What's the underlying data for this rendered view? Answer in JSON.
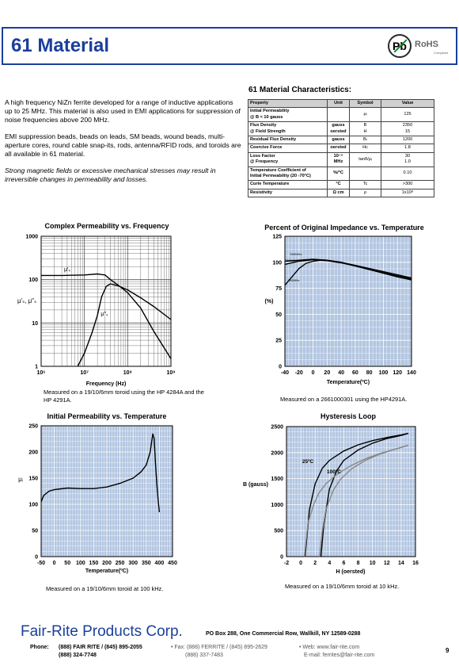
{
  "header": {
    "title": "61 Material",
    "pb": "Pb",
    "rohs": "RoHS",
    "rohs_sub": "Compliant"
  },
  "intro": {
    "p1": "A high frequency NiZn ferrite developed for a range of inductive applications up to 25 MHz. This material is also used in EMI applications for suppression of noise frequencies above 200 MHz.",
    "p2": "EMI suppression beads, beads on leads, SM beads, wound beads, multi-aperture cores, round cable snap-its, rods, antenna/RFID rods, and toroids are all available in 61 material.",
    "p3": "Strong magnetic fields or excessive mechanical stresses may result in irreversible changes in permeability and losses."
  },
  "characteristics": {
    "title": "61 Material Characteristics:",
    "headers": [
      "Property",
      "Unit",
      "Symbol",
      "Value"
    ],
    "rows": [
      {
        "property": [
          "Initial Permeability",
          "@ B < 10 gauss"
        ],
        "unit": [
          ""
        ],
        "symbol": [
          "μᵢ"
        ],
        "value": [
          "125"
        ]
      },
      {
        "property": [
          "Flux Density",
          "@ Field Strength"
        ],
        "unit": [
          "gauss",
          "oersted"
        ],
        "symbol": [
          "B",
          "H"
        ],
        "value": [
          "2350",
          "15"
        ]
      },
      {
        "property": [
          "Residual Flux Density"
        ],
        "unit": [
          "gauss"
        ],
        "symbol": [
          "Bᵣ"
        ],
        "value": [
          "1200"
        ]
      },
      {
        "property": [
          "Coercive Force"
        ],
        "unit": [
          "oersted"
        ],
        "symbol": [
          "Hc"
        ],
        "value": [
          "1.8"
        ]
      },
      {
        "property": [
          "Loss Factor",
          "@ Frequency"
        ],
        "unit": [
          "10⁻⁶",
          "MHz"
        ],
        "symbol": [
          "tanδ/μᵢ"
        ],
        "value": [
          "30",
          "1.0"
        ]
      },
      {
        "property": [
          "Temperature Coefficient of",
          "Initial Permeability (20 -70°C)"
        ],
        "unit": [
          "%/°C"
        ],
        "symbol": [
          ""
        ],
        "value": [
          "0.10"
        ]
      },
      {
        "property": [
          "Curie Temperature"
        ],
        "unit": [
          "°C"
        ],
        "symbol": [
          "Tc"
        ],
        "value": [
          ">300"
        ]
      },
      {
        "property": [
          "Resistivity"
        ],
        "unit": [
          "Ω cm"
        ],
        "symbol": [
          "ρ"
        ],
        "value": [
          "1x10⁸"
        ]
      }
    ]
  },
  "chart_data": [
    {
      "type": "line",
      "title": "Complex Permeability vs. Frequency",
      "xlabel": "Frequency (Hz)",
      "ylabel": "μ'ₛ, μ\"ₛ",
      "xscale": "log",
      "yscale": "log",
      "xlim": [
        1000000,
        1000000000
      ],
      "ylim": [
        1,
        1000
      ],
      "xticks": [
        "10⁶",
        "10⁷",
        "10⁸",
        "10⁹"
      ],
      "yticks": [
        "1",
        "10",
        "100",
        "1000"
      ],
      "series": [
        {
          "name": "μ'ₛ",
          "x": [
            1000000,
            3000000,
            10000000,
            20000000,
            30000000,
            40000000,
            60000000,
            100000000,
            200000000,
            400000000,
            1000000000
          ],
          "values": [
            125,
            125,
            128,
            135,
            128,
            100,
            75,
            50,
            22,
            6.5,
            1.5
          ]
        },
        {
          "name": "μ\"ₛ",
          "x": [
            7000000,
            10000000,
            15000000,
            20000000,
            25000000,
            32000000,
            40000000,
            60000000,
            100000000,
            200000000,
            400000000,
            1000000000
          ],
          "values": [
            1,
            2,
            6,
            15,
            40,
            70,
            80,
            72,
            58,
            38,
            24,
            12
          ]
        }
      ],
      "caption": "Measured on a 19/10/6mm toroid using the HP 4284A and the HP 4291A."
    },
    {
      "type": "line",
      "title": "Percent of Original Impedance vs. Temperature",
      "xlabel": "Temperature(ºC)",
      "ylabel": "(%)",
      "xlim": [
        -40,
        140
      ],
      "ylim": [
        0,
        125
      ],
      "xticks": [
        "-40",
        "-20",
        "0",
        "20",
        "40",
        "60",
        "80",
        "100",
        "120",
        "140"
      ],
      "yticks": [
        "0",
        "25",
        "50",
        "75",
        "100",
        "125"
      ],
      "series": [
        {
          "name": "500MHz",
          "x": [
            -40,
            -20,
            0,
            20,
            40,
            60,
            80,
            100,
            120,
            140
          ],
          "values": [
            101,
            102,
            103,
            102,
            100,
            97,
            94,
            91,
            88,
            85
          ]
        },
        {
          "name": "300MHz",
          "x": [
            -40,
            -20,
            0,
            20,
            40,
            60,
            80,
            100,
            120,
            140
          ],
          "values": [
            98,
            101,
            102.5,
            102,
            100,
            96.5,
            93,
            90,
            87,
            84
          ]
        },
        {
          "name": "100MHz",
          "x": [
            -40,
            -30,
            -20,
            -10,
            0,
            10,
            20,
            40,
            60,
            80,
            100,
            120,
            140
          ],
          "values": [
            78,
            86,
            94,
            99,
            101,
            102,
            101.5,
            99.5,
            96.5,
            93,
            89.5,
            86,
            83
          ]
        }
      ],
      "caption": "Measured on a 2661000301 using the HP4291A."
    },
    {
      "type": "line",
      "title": "Initial Permeability vs. Temperature",
      "xlabel": "Temperature(ºC)",
      "ylabel": "μᵢ",
      "xlim": [
        -50,
        450
      ],
      "ylim": [
        0,
        250
      ],
      "xticks": [
        "-50",
        "0",
        "50",
        "100",
        "150",
        "200",
        "250",
        "300",
        "350",
        "400",
        "450"
      ],
      "yticks": [
        "0",
        "50",
        "100",
        "150",
        "200",
        "250"
      ],
      "series": [
        {
          "name": "",
          "x": [
            -50,
            -40,
            -20,
            0,
            50,
            100,
            150,
            200,
            250,
            300,
            330,
            350,
            365,
            375,
            380,
            385,
            390,
            395,
            400
          ],
          "values": [
            105,
            117,
            125,
            128,
            131,
            130,
            130,
            133,
            140,
            150,
            162,
            175,
            200,
            235,
            225,
            180,
            140,
            110,
            85
          ]
        }
      ],
      "caption": "Measured on a 19/10/6mm toroid at 100 kHz."
    },
    {
      "type": "line",
      "title": "Hysteresis Loop",
      "xlabel": "H (oersted)",
      "ylabel": "B (gauss)",
      "xlim": [
        -2,
        16
      ],
      "ylim": [
        0,
        2500
      ],
      "xticks": [
        "-2",
        "0",
        "2",
        "4",
        "6",
        "8",
        "10",
        "12",
        "14",
        "16"
      ],
      "yticks": [
        "0",
        "500",
        "1000",
        "1500",
        "2000",
        "2500"
      ],
      "annotations": [
        "25ºC",
        "100ºC"
      ],
      "series": [
        {
          "name": "25ºC",
          "x": [
            0.6,
            1.2,
            2,
            3,
            4,
            6,
            8,
            10,
            12,
            14,
            15
          ],
          "values": [
            0,
            900,
            1400,
            1700,
            1850,
            2030,
            2150,
            2230,
            2290,
            2340,
            2370
          ]
        },
        {
          "name": "25ºC",
          "x": [
            2.8,
            3.2,
            4,
            5,
            6,
            8,
            10,
            12,
            14,
            15
          ],
          "values": [
            0,
            600,
            1300,
            1650,
            1850,
            2050,
            2180,
            2270,
            2330,
            2370
          ]
        },
        {
          "name": "100ºC",
          "x": [
            0.5,
            1,
            1.8,
            2.5,
            3.5,
            5,
            7,
            9,
            11,
            13,
            15
          ],
          "values": [
            0,
            650,
            1000,
            1220,
            1400,
            1580,
            1750,
            1880,
            1980,
            2060,
            2140
          ]
        },
        {
          "name": "100ºC",
          "x": [
            2.6,
            3,
            3.5,
            4.5,
            5.5,
            7,
            9,
            11,
            13,
            15
          ],
          "values": [
            0,
            500,
            900,
            1270,
            1480,
            1680,
            1850,
            1970,
            2060,
            2140
          ]
        }
      ],
      "caption": "Measured on a 19/10/6mm toroid at 10 kHz."
    }
  ],
  "footer": {
    "brand": "Fair-Rite Products Corp.",
    "address": "PO Box 288, One Commercial Row, Wallkill, NY 12589-0288",
    "phone_label": "Phone:",
    "phone1": "(888) FAIR RITE / (845) 895-2055",
    "phone2": "(888) 324-7748",
    "fax1": "•  Fax: (888) FERRITE / (845) 895-2629",
    "fax2": "(888) 337-7483",
    "web1": "•  Web:  www.fair-rite.com",
    "web2": "E-mail: ferrites@fair-rite.com",
    "page": "9"
  }
}
